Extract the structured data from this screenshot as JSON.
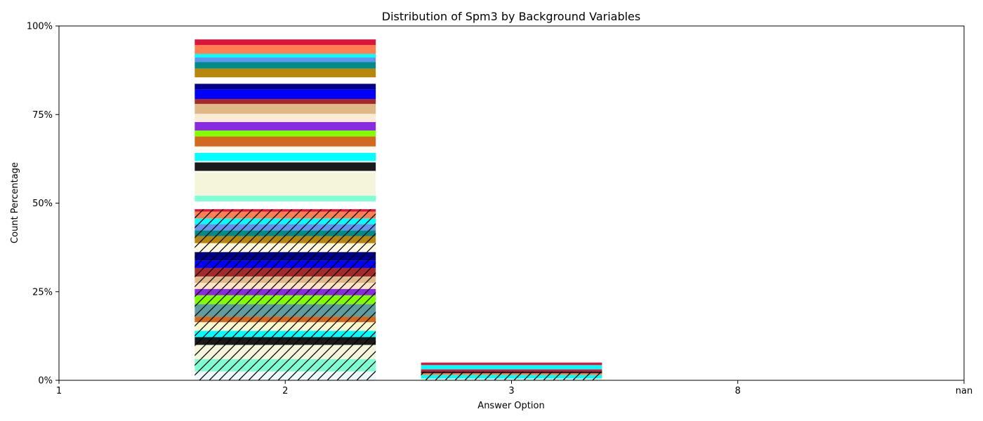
{
  "chart_data": {
    "type": "bar",
    "title": "Distribution of Spm3 by Background Variables",
    "xlabel": "Answer Option",
    "ylabel": "Count Percentage",
    "categories": [
      "1",
      "2",
      "3",
      "8",
      "nan"
    ],
    "ylim": [
      0,
      100
    ],
    "yticks": [
      "0%",
      "25%",
      "50%",
      "75%",
      "100%"
    ],
    "ytick_values": [
      0,
      25,
      50,
      75,
      100
    ],
    "grid": false,
    "legend": "none",
    "stacks": [
      {
        "category": "2",
        "segments": [
          {
            "value": 2.5,
            "color": "#f0f8ff",
            "hatch": true
          },
          {
            "value": 3.5,
            "color": "#7fffd4",
            "hatch": true
          },
          {
            "value": 4.0,
            "color": "#f5f5dc",
            "hatch": true
          },
          {
            "value": 2.2,
            "color": "#1a1a1a",
            "hatch": true
          },
          {
            "value": 1.8,
            "color": "#00ffff",
            "hatch": true
          },
          {
            "value": 2.4,
            "color": "#fffacd",
            "hatch": true
          },
          {
            "value": 1.6,
            "color": "#d2691e",
            "hatch": true
          },
          {
            "value": 3.5,
            "color": "#5f9ea0",
            "hatch": true
          },
          {
            "value": 2.5,
            "color": "#7fff00",
            "hatch": true
          },
          {
            "value": 1.8,
            "color": "#8a2be2",
            "hatch": true
          },
          {
            "value": 1.7,
            "color": "#ffe4c4",
            "hatch": true
          },
          {
            "value": 1.8,
            "color": "#deb887",
            "hatch": true
          },
          {
            "value": 2.4,
            "color": "#a52a2a",
            "hatch": true
          },
          {
            "value": 2.0,
            "color": "#0000ff",
            "hatch": true
          },
          {
            "value": 2.5,
            "color": "#00008b",
            "hatch": true
          },
          {
            "value": 2.5,
            "color": "#fff8dc",
            "hatch": true
          },
          {
            "value": 2.0,
            "color": "#b8860b",
            "hatch": true
          },
          {
            "value": 1.6,
            "color": "#008b8b",
            "hatch": true
          },
          {
            "value": 1.8,
            "color": "#6495ed",
            "hatch": true
          },
          {
            "value": 1.6,
            "color": "#00ffff",
            "hatch": true
          },
          {
            "value": 1.9,
            "color": "#ff7f50",
            "hatch": true
          },
          {
            "value": 0.7,
            "color": "#dc143c",
            "hatch": true
          },
          {
            "value": 2.2,
            "color": "#ffffff",
            "hatch": false
          },
          {
            "value": 1.6,
            "color": "#7fffd4",
            "hatch": false
          },
          {
            "value": 6.6,
            "color": "#f5f5dc",
            "hatch": false
          },
          {
            "value": 0.4,
            "color": "#ffffff",
            "hatch": false
          },
          {
            "value": 2.4,
            "color": "#1a1a1a",
            "hatch": false
          },
          {
            "value": 0.4,
            "color": "#ffffff",
            "hatch": false
          },
          {
            "value": 2.3,
            "color": "#00ffff",
            "hatch": false
          },
          {
            "value": 1.8,
            "color": "#fffaf0",
            "hatch": false
          },
          {
            "value": 2.8,
            "color": "#d2691e",
            "hatch": false
          },
          {
            "value": 1.7,
            "color": "#7fff00",
            "hatch": false
          },
          {
            "value": 2.4,
            "color": "#8a2be2",
            "hatch": false
          },
          {
            "value": 2.3,
            "color": "#faebd7",
            "hatch": false
          },
          {
            "value": 2.8,
            "color": "#deb887",
            "hatch": false
          },
          {
            "value": 1.4,
            "color": "#a52a2a",
            "hatch": false
          },
          {
            "value": 2.7,
            "color": "#0000ff",
            "hatch": false
          },
          {
            "value": 1.6,
            "color": "#00008b",
            "hatch": false
          },
          {
            "value": 1.8,
            "color": "#ffffff",
            "hatch": false
          },
          {
            "value": 2.5,
            "color": "#b8860b",
            "hatch": false
          },
          {
            "value": 1.8,
            "color": "#008b8b",
            "hatch": false
          },
          {
            "value": 1.3,
            "color": "#6495ed",
            "hatch": false
          },
          {
            "value": 1.0,
            "color": "#00ffff",
            "hatch": false
          },
          {
            "value": 2.5,
            "color": "#ff7f50",
            "hatch": false
          },
          {
            "value": 1.6,
            "color": "#dc143c",
            "hatch": false
          }
        ]
      },
      {
        "category": "3",
        "segments": [
          {
            "value": 0.5,
            "color": "#f5f5dc",
            "hatch": true
          },
          {
            "value": 1.0,
            "color": "#00ffff",
            "hatch": true
          },
          {
            "value": 0.5,
            "color": "#ff7f50",
            "hatch": true
          },
          {
            "value": 0.5,
            "color": "#1a1a1a",
            "hatch": true
          },
          {
            "value": 0.6,
            "color": "#dc143c",
            "hatch": false
          },
          {
            "value": 1.2,
            "color": "#00ffff",
            "hatch": false
          },
          {
            "value": 0.7,
            "color": "#dc143c",
            "hatch": false
          }
        ]
      }
    ]
  }
}
